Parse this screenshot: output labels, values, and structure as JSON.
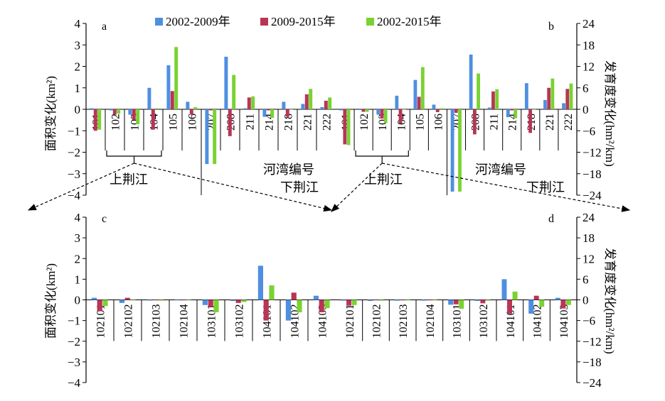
{
  "legend": [
    {
      "name": "2002-2009年",
      "color": "#4f8fe0"
    },
    {
      "name": "2009-2015年",
      "color": "#b83556"
    },
    {
      "name": "2002-2015年",
      "color": "#7ad232"
    }
  ],
  "left_axis_label": "面积变化(km²)",
  "right_axis_label": "发育度变化(hm²/km)",
  "annotations": {
    "upper": "上荆江",
    "lower": "下荆江",
    "bend_id": "河湾编号"
  },
  "chart_data": [
    {
      "type": "bar",
      "panel": "a",
      "categories": [
        "101",
        "102",
        "103",
        "104",
        "105",
        "106",
        "207",
        "208",
        "211",
        "214",
        "218",
        "221",
        "222"
      ],
      "ylabel": "面积变化(km²)",
      "ylim": [
        -4,
        4
      ],
      "yticks": [
        -4,
        -3,
        -2,
        -1,
        0,
        1,
        2,
        3,
        4
      ],
      "series": [
        {
          "name": "2002-2009年",
          "values": [
            0.05,
            -0.05,
            -0.25,
            1.0,
            2.05,
            0.35,
            -2.55,
            2.45,
            0.05,
            -0.35,
            0.35,
            0.25,
            0.1
          ]
        },
        {
          "name": "2009-2015年",
          "values": [
            -1.0,
            -0.25,
            -0.5,
            -0.95,
            0.85,
            -0.25,
            -0.05,
            -1.25,
            0.55,
            -0.05,
            -0.35,
            0.7,
            0.4
          ]
        },
        {
          "name": "2002-2015年",
          "values": [
            -0.95,
            -0.2,
            -0.7,
            0.05,
            2.9,
            0.1,
            -2.55,
            1.6,
            0.6,
            -0.4,
            0.0,
            0.95,
            0.55
          ]
        }
      ]
    },
    {
      "type": "bar",
      "panel": "b",
      "categories": [
        "101",
        "102",
        "103",
        "104",
        "105",
        "106",
        "207",
        "208",
        "211",
        "214",
        "218",
        "221",
        "222"
      ],
      "ylabel": "发育度变化(hm²/km)",
      "ylim": [
        -24,
        24
      ],
      "yticks": [
        -24,
        -18,
        -12,
        -6,
        0,
        6,
        12,
        18,
        24
      ],
      "series": [
        {
          "name": "2002-2009年",
          "values": [
            -0.3,
            -0.2,
            -1.5,
            3.8,
            8.2,
            1.3,
            -23.0,
            15.3,
            0.5,
            -2.2,
            7.3,
            2.6,
            1.7
          ]
        },
        {
          "name": "2009-2015年",
          "values": [
            -9.8,
            -0.7,
            -2.6,
            -4.0,
            3.5,
            -0.8,
            -1.0,
            -7.0,
            5.0,
            -0.3,
            -6.6,
            6.0,
            5.7
          ]
        },
        {
          "name": "2002-2015年",
          "values": [
            -10.0,
            -0.7,
            -3.8,
            -0.1,
            11.8,
            0.3,
            -23.0,
            10.0,
            5.6,
            -2.5,
            0.0,
            8.6,
            7.2
          ]
        }
      ]
    },
    {
      "type": "bar",
      "panel": "c",
      "categories": [
        "102101",
        "102102",
        "102103",
        "102104",
        "103101",
        "103102",
        "104101",
        "104102",
        "104103"
      ],
      "ylabel": "面积变化(km²)",
      "ylim": [
        -4,
        4
      ],
      "yticks": [
        -4,
        -3,
        -2,
        -1,
        0,
        1,
        2,
        3,
        4
      ],
      "series": [
        {
          "name": "2002-2009年",
          "values": [
            0.1,
            -0.15,
            -0.03,
            -0.02,
            -0.25,
            -0.05,
            1.65,
            -1.0,
            0.2
          ]
        },
        {
          "name": "2009-2015年",
          "values": [
            -0.55,
            0.1,
            -0.02,
            -0.02,
            -0.35,
            -0.15,
            -1.0,
            0.35,
            -0.6
          ]
        },
        {
          "name": "2002-2015年",
          "values": [
            -0.3,
            0.0,
            -0.03,
            -0.02,
            -0.6,
            -0.1,
            0.7,
            -0.6,
            -0.4
          ]
        }
      ]
    },
    {
      "type": "bar",
      "panel": "d",
      "categories": [
        "102101",
        "102102",
        "102103",
        "102104",
        "103101",
        "103102",
        "104101",
        "104102",
        "104103"
      ],
      "ylabel": "发育度变化(hm²/km)",
      "ylim": [
        -24,
        24
      ],
      "yticks": [
        -24,
        -18,
        -12,
        -6,
        0,
        6,
        12,
        18,
        24
      ],
      "series": [
        {
          "name": "2002-2009年",
          "values": [
            -0.2,
            -0.3,
            -0.2,
            -0.2,
            -1.4,
            -0.3,
            6.0,
            -4.0,
            0.6
          ]
        },
        {
          "name": "2009-2015年",
          "values": [
            -1.7,
            -0.1,
            -0.1,
            -0.1,
            -1.3,
            -1.0,
            -4.0,
            1.2,
            -2.5
          ]
        },
        {
          "name": "2002-2015年",
          "values": [
            -1.5,
            -0.2,
            -0.1,
            -0.1,
            -2.6,
            -0.2,
            2.4,
            -2.0,
            -1.5
          ]
        }
      ]
    }
  ]
}
